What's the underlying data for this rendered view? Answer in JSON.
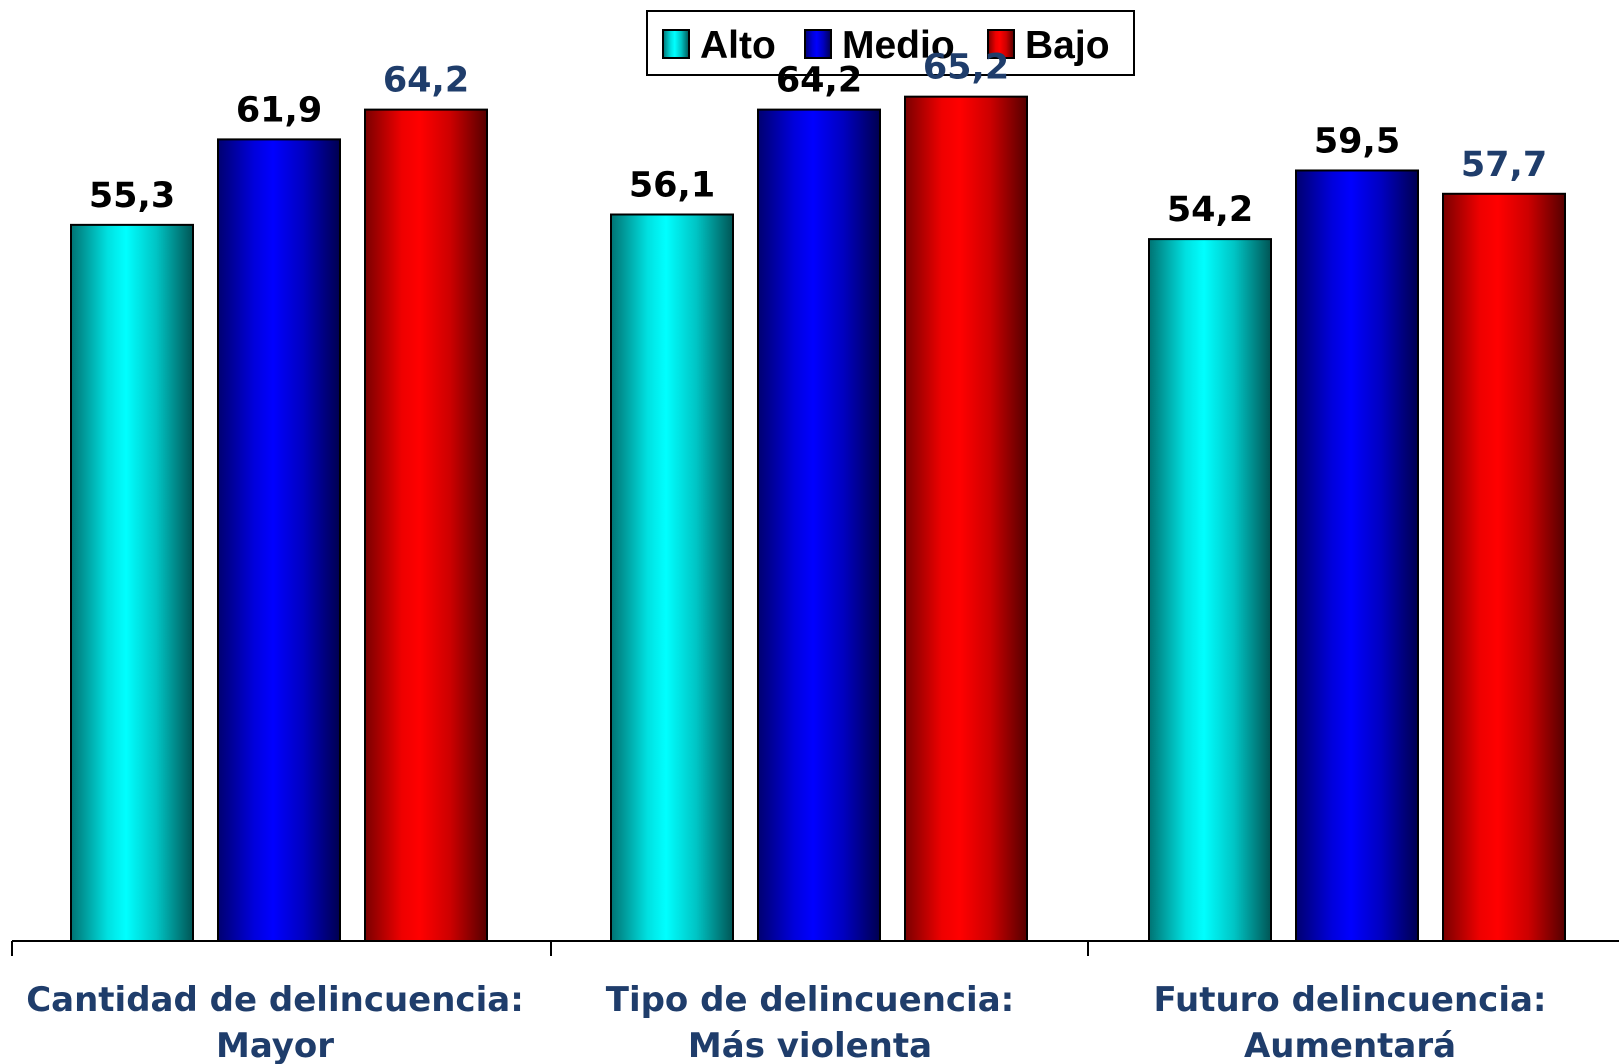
{
  "chart_data": {
    "type": "bar",
    "categories": [
      {
        "line1": "Cantidad de delincuencia:",
        "line2": "Mayor"
      },
      {
        "line1": "Tipo de delincuencia:",
        "line2": "Más violenta"
      },
      {
        "line1": "Futuro delincuencia:",
        "line2": "Aumentará"
      }
    ],
    "series": [
      {
        "name": "Alto",
        "values": [
          55.3,
          56.1,
          54.2
        ],
        "labels": [
          "55,3",
          "56,1",
          "54,2"
        ],
        "color": "#00ffff",
        "label_color": "#000000"
      },
      {
        "name": "Medio",
        "values": [
          61.9,
          64.2,
          59.5
        ],
        "labels": [
          "61,9",
          "64,2",
          "59,5"
        ],
        "color": "#0000ff",
        "label_color": "#000000"
      },
      {
        "name": "Bajo",
        "values": [
          64.2,
          65.2,
          57.7
        ],
        "labels": [
          "64,2",
          "65,2",
          "57,7"
        ],
        "color": "#ff0000",
        "label_color": "#1f3d6b"
      }
    ],
    "ylim": [
      0,
      70
    ],
    "grid": false,
    "legend_position": "top-center"
  }
}
